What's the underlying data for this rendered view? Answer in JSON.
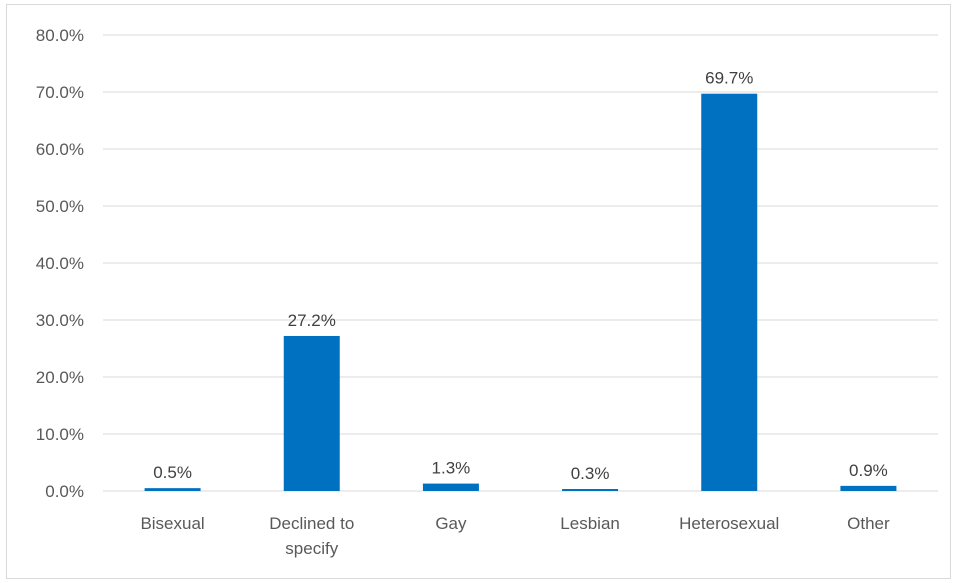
{
  "chart_data": {
    "type": "bar",
    "categories": [
      [
        "Bisexual"
      ],
      [
        "Declined to",
        "specify"
      ],
      [
        "Gay"
      ],
      [
        "Lesbian"
      ],
      [
        "Heterosexual"
      ],
      [
        "Other"
      ]
    ],
    "values": [
      0.5,
      27.2,
      1.3,
      0.3,
      69.7,
      0.9
    ],
    "data_labels": [
      "0.5%",
      "27.2%",
      "1.3%",
      "0.3%",
      "69.7%",
      "0.9%"
    ],
    "y_ticks": [
      "0.0%",
      "10.0%",
      "20.0%",
      "30.0%",
      "40.0%",
      "50.0%",
      "60.0%",
      "70.0%",
      "80.0%"
    ],
    "ylim": [
      0,
      80
    ],
    "grid": true,
    "bar_color": "#0070c0",
    "grid_color": "#d9d9d9"
  }
}
